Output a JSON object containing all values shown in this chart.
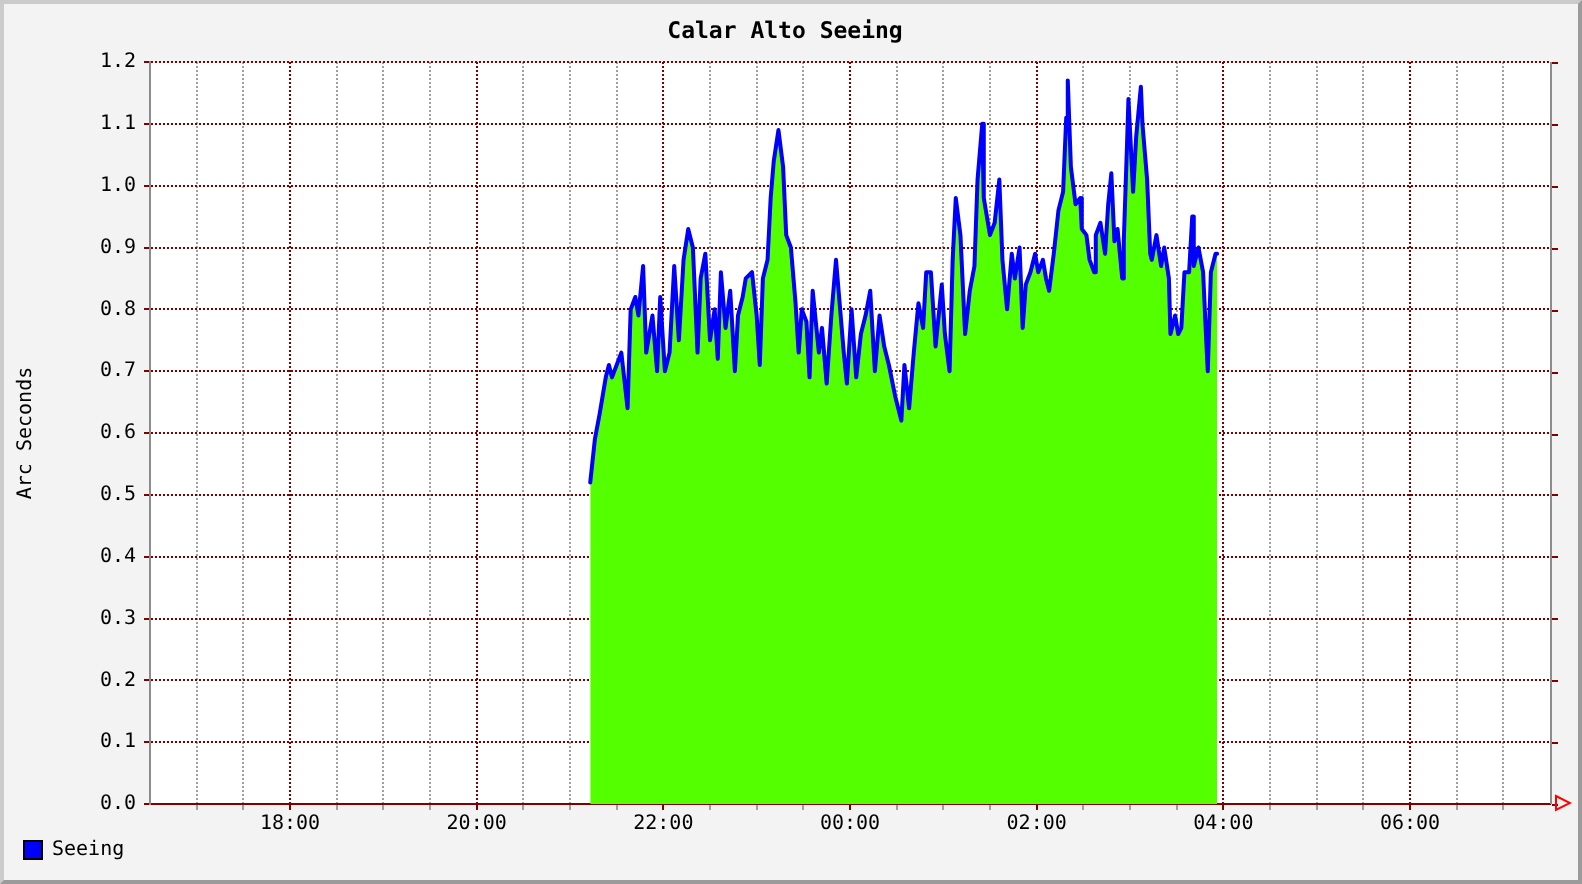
{
  "chart_data": {
    "type": "area",
    "title": "Calar Alto Seeing",
    "ylabel": "Arc Seconds",
    "x": [
      "2000-01-01T21:13",
      "2000-01-01T21:16",
      "2000-01-01T21:19",
      "2000-01-01T21:23",
      "2000-01-01T21:25",
      "2000-01-01T21:27",
      "2000-01-01T21:30",
      "2000-01-01T21:33",
      "2000-01-01T21:37",
      "2000-01-01T21:39",
      "2000-01-01T21:42",
      "2000-01-01T21:44",
      "2000-01-01T21:47",
      "2000-01-01T21:49",
      "2000-01-01T21:53",
      "2000-01-01T21:56",
      "2000-01-01T21:58",
      "2000-01-01T22:01",
      "2000-01-01T22:04",
      "2000-01-01T22:07",
      "2000-01-01T22:10",
      "2000-01-01T22:13",
      "2000-01-01T22:16",
      "2000-01-01T22:19",
      "2000-01-01T22:22",
      "2000-01-01T22:24",
      "2000-01-01T22:27",
      "2000-01-01T22:30",
      "2000-01-01T22:33",
      "2000-01-01T22:35",
      "2000-01-01T22:37",
      "2000-01-01T22:40",
      "2000-01-01T22:43",
      "2000-01-01T22:46",
      "2000-01-01T22:48",
      "2000-01-01T22:51",
      "2000-01-01T22:53",
      "2000-01-01T22:57",
      "2000-01-01T23:00",
      "2000-01-01T23:02",
      "2000-01-01T23:04",
      "2000-01-01T23:07",
      "2000-01-01T23:09",
      "2000-01-01T23:11",
      "2000-01-01T23:14",
      "2000-01-01T23:17",
      "2000-01-01T23:19",
      "2000-01-01T23:22",
      "2000-01-01T23:25",
      "2000-01-01T23:27",
      "2000-01-01T23:29",
      "2000-01-01T23:32",
      "2000-01-01T23:34",
      "2000-01-01T23:36",
      "2000-01-01T23:40",
      "2000-01-01T23:42",
      "2000-01-01T23:45",
      "2000-01-01T23:48",
      "2000-01-01T23:51",
      "2000-01-01T23:53",
      "2000-01-01T23:56",
      "2000-01-01T23:58",
      "2000-01-02T00:01",
      "2000-01-02T00:04",
      "2000-01-02T00:07",
      "2000-01-02T00:10",
      "2000-01-02T00:13",
      "2000-01-02T00:16",
      "2000-01-02T00:19",
      "2000-01-02T00:22",
      "2000-01-02T00:25",
      "2000-01-02T00:29",
      "2000-01-02T00:33",
      "2000-01-02T00:35",
      "2000-01-02T00:38",
      "2000-01-02T00:41",
      "2000-01-02T00:44",
      "2000-01-02T00:47",
      "2000-01-02T00:49",
      "2000-01-02T00:52",
      "2000-01-02T00:55",
      "2000-01-02T00:59",
      "2000-01-02T01:01",
      "2000-01-02T01:04",
      "2000-01-02T01:06",
      "2000-01-02T01:08",
      "2000-01-02T01:11",
      "2000-01-02T01:14",
      "2000-01-02T01:17",
      "2000-01-02T01:20",
      "2000-01-02T01:22",
      "2000-01-02T01:25",
      "2000-01-02T01:26",
      "2000-01-02T01:30",
      "2000-01-02T01:33",
      "2000-01-02T01:36",
      "2000-01-02T01:38",
      "2000-01-02T01:41",
      "2000-01-02T01:44",
      "2000-01-02T01:46",
      "2000-01-02T01:49",
      "2000-01-02T01:51",
      "2000-01-02T01:53",
      "2000-01-02T01:56",
      "2000-01-02T01:59",
      "2000-01-02T02:01",
      "2000-01-02T02:04",
      "2000-01-02T02:06",
      "2000-01-02T02:08",
      "2000-01-02T02:11",
      "2000-01-02T02:14",
      "2000-01-02T02:17",
      "2000-01-02T02:19",
      "2000-01-02T02:20",
      "2000-01-02T02:22",
      "2000-01-02T02:25",
      "2000-01-02T02:28",
      "2000-01-02T02:29",
      "2000-01-02T02:32",
      "2000-01-02T02:34",
      "2000-01-02T02:37",
      "2000-01-02T02:38",
      "2000-01-02T02:41",
      "2000-01-02T02:44",
      "2000-01-02T02:46",
      "2000-01-02T02:48",
      "2000-01-02T02:50",
      "2000-01-02T02:52",
      "2000-01-02T02:55",
      "2000-01-02T02:56",
      "2000-01-02T02:58",
      "2000-01-02T02:59",
      "2000-01-02T03:02",
      "2000-01-02T03:04",
      "2000-01-02T03:07",
      "2000-01-02T03:08",
      "2000-01-02T03:11",
      "2000-01-02T03:13",
      "2000-01-02T03:14",
      "2000-01-02T03:17",
      "2000-01-02T03:20",
      "2000-01-02T03:22",
      "2000-01-02T03:25",
      "2000-01-02T03:26",
      "2000-01-02T03:29",
      "2000-01-02T03:31",
      "2000-01-02T03:33",
      "2000-01-02T03:35",
      "2000-01-02T03:38",
      "2000-01-02T03:40",
      "2000-01-02T03:41",
      "2000-01-02T03:44",
      "2000-01-02T03:47",
      "2000-01-02T03:49",
      "2000-01-02T03:50",
      "2000-01-02T03:52",
      "2000-01-02T03:55",
      "2000-01-02T03:56"
    ],
    "series": [
      {
        "type": "area",
        "color": "#54ff00",
        "values": [
          0.52,
          0.59,
          0.63,
          0.69,
          0.71,
          0.69,
          0.71,
          0.73,
          0.64,
          0.8,
          0.82,
          0.79,
          0.87,
          0.73,
          0.79,
          0.7,
          0.82,
          0.7,
          0.73,
          0.87,
          0.75,
          0.88,
          0.93,
          0.9,
          0.73,
          0.85,
          0.89,
          0.75,
          0.8,
          0.72,
          0.86,
          0.77,
          0.83,
          0.7,
          0.79,
          0.82,
          0.85,
          0.86,
          0.79,
          0.71,
          0.85,
          0.88,
          0.98,
          1.04,
          1.09,
          1.03,
          0.92,
          0.9,
          0.81,
          0.73,
          0.8,
          0.78,
          0.69,
          0.83,
          0.73,
          0.77,
          0.68,
          0.79,
          0.88,
          0.82,
          0.73,
          0.68,
          0.8,
          0.69,
          0.76,
          0.79,
          0.83,
          0.7,
          0.79,
          0.74,
          0.71,
          0.66,
          0.62,
          0.71,
          0.64,
          0.73,
          0.81,
          0.77,
          0.86,
          0.86,
          0.74,
          0.84,
          0.76,
          0.7,
          0.88,
          0.98,
          0.92,
          0.76,
          0.83,
          0.87,
          1.01,
          1.1,
          0.98,
          0.92,
          0.94,
          1.01,
          0.88,
          0.8,
          0.89,
          0.85,
          0.9,
          0.77,
          0.84,
          0.86,
          0.89,
          0.86,
          0.88,
          0.85,
          0.83,
          0.89,
          0.96,
          0.99,
          1.11,
          1.17,
          1.03,
          0.97,
          0.98,
          0.93,
          0.92,
          0.88,
          0.86,
          0.92,
          0.94,
          0.89,
          0.97,
          1.02,
          0.91,
          0.93,
          0.85,
          0.91,
          1.06,
          1.14,
          0.99,
          1.08,
          1.16,
          1.1,
          1.01,
          0.89,
          0.88,
          0.92,
          0.87,
          0.9,
          0.85,
          0.76,
          0.79,
          0.76,
          0.77,
          0.86,
          0.86,
          0.95,
          0.87,
          0.9,
          0.86,
          0.75,
          0.7,
          0.86,
          0.89,
          0.89
        ]
      },
      {
        "type": "line",
        "name": "Seeing",
        "color": "#0000ff",
        "values": [
          0.52,
          0.59,
          0.63,
          0.69,
          0.71,
          0.69,
          0.71,
          0.73,
          0.64,
          0.8,
          0.82,
          0.79,
          0.87,
          0.73,
          0.79,
          0.7,
          0.82,
          0.7,
          0.73,
          0.87,
          0.75,
          0.88,
          0.93,
          0.9,
          0.73,
          0.85,
          0.89,
          0.75,
          0.8,
          0.72,
          0.86,
          0.77,
          0.83,
          0.7,
          0.79,
          0.82,
          0.85,
          0.86,
          0.79,
          0.71,
          0.85,
          0.88,
          0.98,
          1.04,
          1.09,
          1.03,
          0.92,
          0.9,
          0.81,
          0.73,
          0.8,
          0.78,
          0.69,
          0.83,
          0.73,
          0.77,
          0.68,
          0.79,
          0.88,
          0.82,
          0.73,
          0.68,
          0.8,
          0.69,
          0.76,
          0.79,
          0.83,
          0.7,
          0.79,
          0.74,
          0.71,
          0.66,
          0.62,
          0.71,
          0.64,
          0.73,
          0.81,
          0.77,
          0.86,
          0.86,
          0.74,
          0.84,
          0.76,
          0.7,
          0.88,
          0.98,
          0.92,
          0.76,
          0.83,
          0.87,
          1.01,
          1.1,
          0.98,
          0.92,
          0.94,
          1.01,
          0.88,
          0.8,
          0.89,
          0.85,
          0.9,
          0.77,
          0.84,
          0.86,
          0.89,
          0.86,
          0.88,
          0.85,
          0.83,
          0.89,
          0.96,
          0.99,
          1.11,
          1.17,
          1.03,
          0.97,
          0.98,
          0.93,
          0.92,
          0.88,
          0.86,
          0.92,
          0.94,
          0.89,
          0.97,
          1.02,
          0.91,
          0.93,
          0.85,
          0.91,
          1.06,
          1.14,
          0.99,
          1.08,
          1.16,
          1.1,
          1.01,
          0.89,
          0.88,
          0.92,
          0.87,
          0.9,
          0.85,
          0.76,
          0.79,
          0.76,
          0.77,
          0.86,
          0.86,
          0.95,
          0.87,
          0.9,
          0.86,
          0.75,
          0.7,
          0.86,
          0.89,
          0.89
        ]
      }
    ],
    "xlim": [
      "2000-01-01T16:30",
      "2000-01-02T07:30"
    ],
    "xticks": [
      {
        "value": "2000-01-01T17:00",
        "label": null
      },
      {
        "value": "2000-01-01T17:30",
        "label": null
      },
      {
        "value": "2000-01-01T18:00",
        "label": "18:00"
      },
      {
        "value": "2000-01-01T18:30",
        "label": null
      },
      {
        "value": "2000-01-01T19:00",
        "label": null
      },
      {
        "value": "2000-01-01T19:30",
        "label": null
      },
      {
        "value": "2000-01-01T20:00",
        "label": "20:00"
      },
      {
        "value": "2000-01-01T20:30",
        "label": null
      },
      {
        "value": "2000-01-01T21:00",
        "label": null
      },
      {
        "value": "2000-01-01T21:30",
        "label": null
      },
      {
        "value": "2000-01-01T22:00",
        "label": "22:00"
      },
      {
        "value": "2000-01-01T22:30",
        "label": null
      },
      {
        "value": "2000-01-01T23:00",
        "label": null
      },
      {
        "value": "2000-01-01T23:30",
        "label": null
      },
      {
        "value": "2000-01-02T00:00",
        "label": "00:00"
      },
      {
        "value": "2000-01-02T00:30",
        "label": null
      },
      {
        "value": "2000-01-02T01:00",
        "label": null
      },
      {
        "value": "2000-01-02T01:30",
        "label": null
      },
      {
        "value": "2000-01-02T02:00",
        "label": "02:00"
      },
      {
        "value": "2000-01-02T02:30",
        "label": null
      },
      {
        "value": "2000-01-02T03:00",
        "label": null
      },
      {
        "value": "2000-01-02T03:30",
        "label": null
      },
      {
        "value": "2000-01-02T04:00",
        "label": "04:00"
      },
      {
        "value": "2000-01-02T04:30",
        "label": null
      },
      {
        "value": "2000-01-02T05:00",
        "label": null
      },
      {
        "value": "2000-01-02T05:30",
        "label": null
      },
      {
        "value": "2000-01-02T06:00",
        "label": "06:00"
      },
      {
        "value": "2000-01-02T06:30",
        "label": null
      },
      {
        "value": "2000-01-02T07:00",
        "label": null
      }
    ],
    "ylim": [
      0,
      1.2
    ],
    "yticks": [
      {
        "value": 0,
        "label": "0.0"
      },
      0.1,
      0.2,
      0.3,
      0.4,
      0.5,
      0.6,
      0.7,
      0.8,
      0.9,
      {
        "value": 1,
        "label": "1.0"
      },
      1.1,
      1.2
    ],
    "grid": true,
    "legend": "bottom left"
  }
}
